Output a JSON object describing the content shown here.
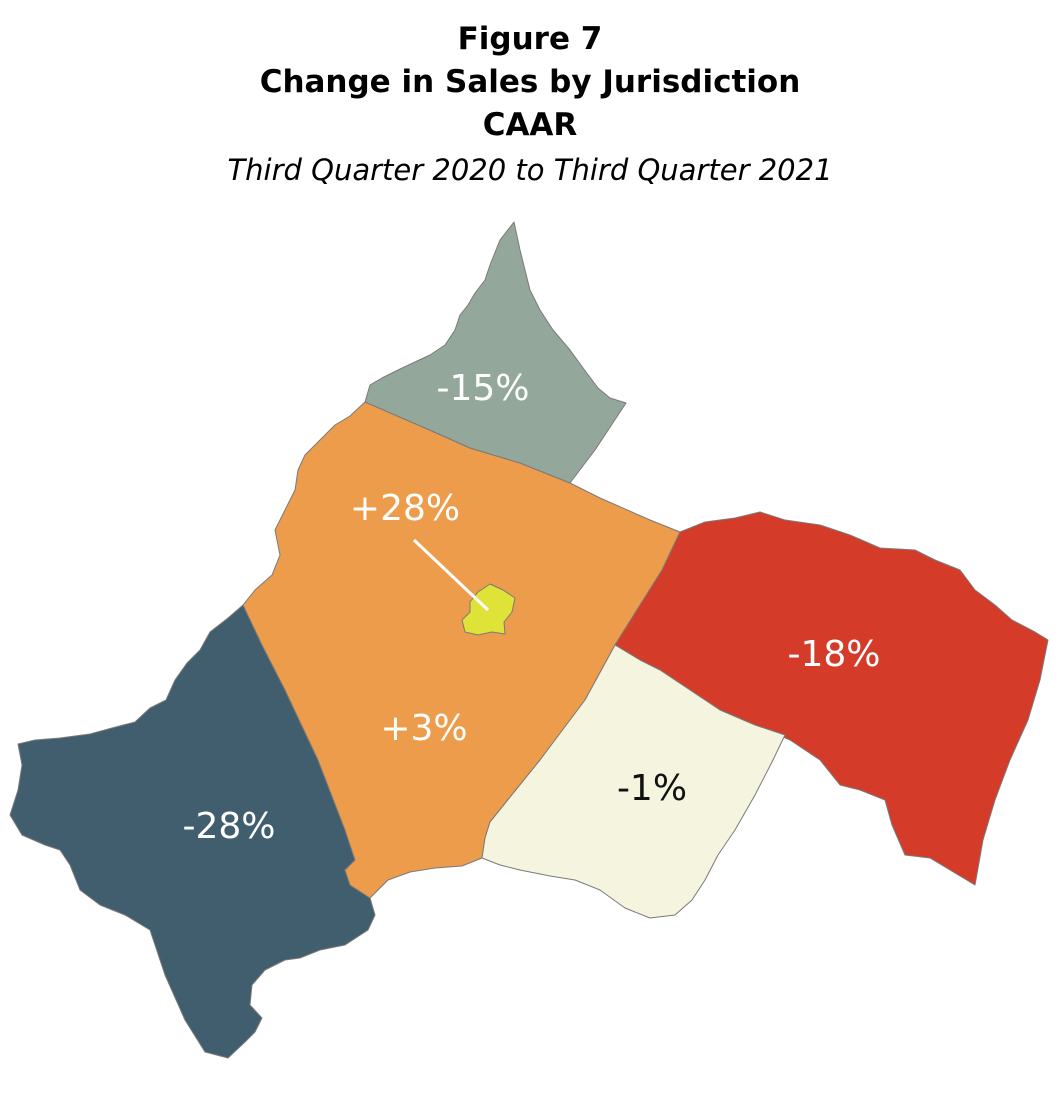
{
  "figure": {
    "number": "Figure 7",
    "title": "Change in Sales by Jurisdiction",
    "organization": "CAAR",
    "period": "Third Quarter 2020 to Third Quarter 2021"
  },
  "regions": [
    {
      "id": "north",
      "value": "-15%",
      "fill": "#93a89b",
      "label_color": "#ffffff"
    },
    {
      "id": "center",
      "value": "+3%",
      "fill": "#ed9c4b",
      "label_color": "#ffffff"
    },
    {
      "id": "city",
      "value": "+28%",
      "fill": "#dfe237",
      "label_color": "#ffffff"
    },
    {
      "id": "east",
      "value": "-18%",
      "fill": "#d53b29",
      "label_color": "#ffffff"
    },
    {
      "id": "southeast",
      "value": "-1%",
      "fill": "#f4f4df",
      "label_color": "#111111"
    },
    {
      "id": "southwest",
      "value": "-28%",
      "fill": "#415e6e",
      "label_color": "#ffffff"
    }
  ]
}
